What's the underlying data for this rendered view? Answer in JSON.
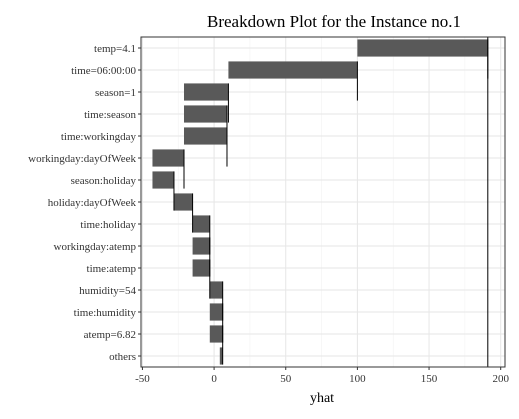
{
  "chart_data": {
    "type": "bar",
    "subtype": "waterfall",
    "title": "Breakdown Plot for the Instance no.1",
    "xlabel": "yhat",
    "ylabel": "",
    "xlim": [
      -51,
      203
    ],
    "xticks": [
      -50,
      0,
      50,
      100,
      150,
      200
    ],
    "grid": true,
    "legend": "none",
    "bar_color": "#595959",
    "final_prediction": 191,
    "variables": [
      {
        "label": "temp=4.1",
        "start": 100,
        "end": 191
      },
      {
        "label": "time=06:00:00",
        "start": 10,
        "end": 100
      },
      {
        "label": "season=1",
        "start": -21,
        "end": 10
      },
      {
        "label": "time:season",
        "start": -21,
        "end": 9
      },
      {
        "label": "time:workingday",
        "start": -21,
        "end": 9
      },
      {
        "label": "workingday:dayOfWeek",
        "start": -43,
        "end": -21
      },
      {
        "label": "season:holiday",
        "start": -43,
        "end": -28
      },
      {
        "label": "holiday:dayOfWeek",
        "start": -28,
        "end": -15
      },
      {
        "label": "time:holiday",
        "start": -15,
        "end": -3
      },
      {
        "label": "workingday:atemp",
        "start": -15,
        "end": -3
      },
      {
        "label": "time:atemp",
        "start": -15,
        "end": -3
      },
      {
        "label": "humidity=54",
        "start": -3,
        "end": 6
      },
      {
        "label": "time:humidity",
        "start": -3,
        "end": 6
      },
      {
        "label": "atemp=6.82",
        "start": -3,
        "end": 6
      },
      {
        "label": "others",
        "start": 4,
        "end": 6
      }
    ]
  }
}
